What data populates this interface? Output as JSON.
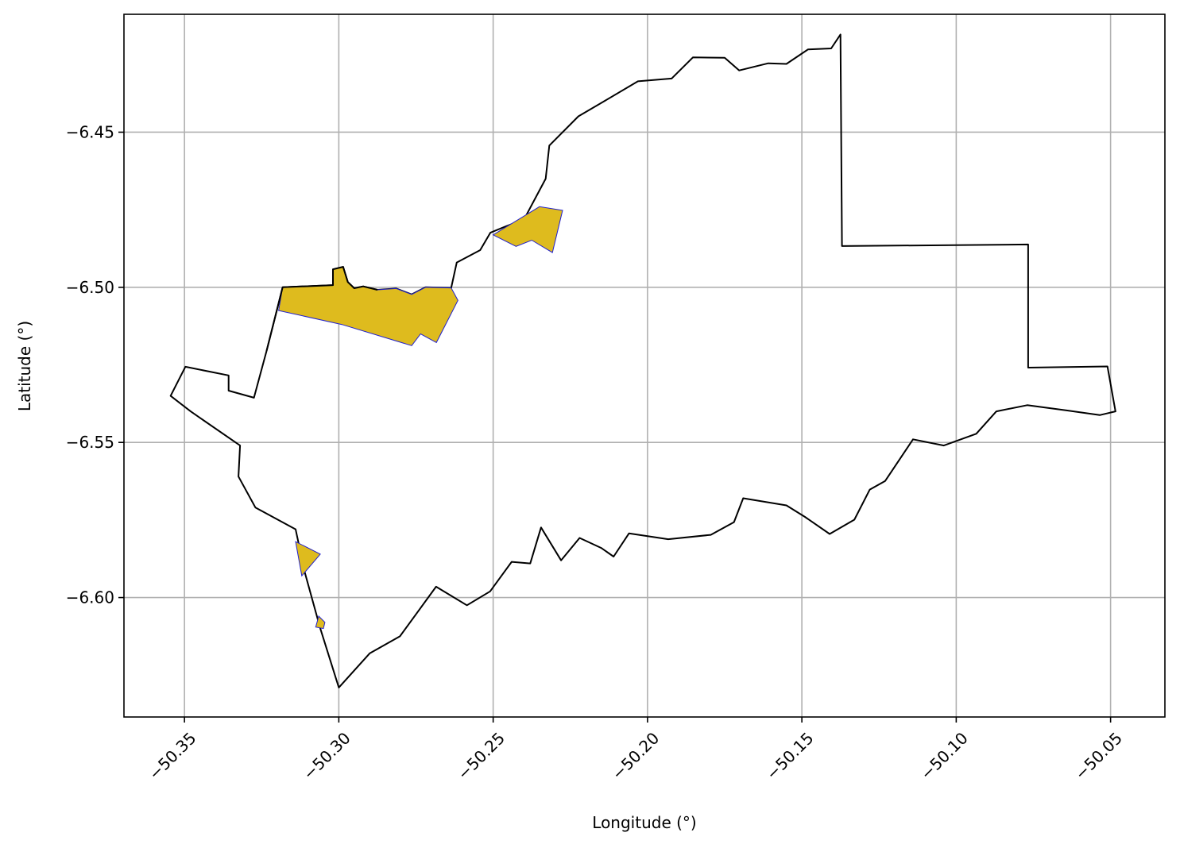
{
  "chart_data": {
    "type": "map",
    "xlabel": "Longitude (°)",
    "ylabel": "Latitude (°)",
    "xlim": [
      -50.3696,
      -50.0324
    ],
    "ylim": [
      -6.6385,
      -6.412
    ],
    "grid": true,
    "x_ticks": [
      -50.35,
      -50.3,
      -50.25,
      -50.2,
      -50.15,
      -50.1,
      -50.05
    ],
    "x_tick_labels": [
      "−50.35",
      "−50.30",
      "−50.25",
      "−50.20",
      "−50.15",
      "−50.10",
      "−50.05"
    ],
    "y_ticks": [
      -6.45,
      -6.5,
      -6.55,
      -6.6
    ],
    "y_tick_labels": [
      "−6.45",
      "−6.50",
      "−6.55",
      "−6.60"
    ],
    "colors": {
      "boundary": "#000000",
      "highlight_fill": "#DEBB1E",
      "highlight_edge": "#2020d0",
      "grid": "#b0b0b0"
    },
    "boundary": [
      [
        -50.3497,
        -6.5256
      ],
      [
        -50.3357,
        -6.5284
      ],
      [
        -50.3357,
        -6.5333
      ],
      [
        -50.3275,
        -6.5356
      ],
      [
        -50.3234,
        -6.5205
      ],
      [
        -50.3182,
        -6.5
      ],
      [
        -50.3019,
        -6.4993
      ],
      [
        -50.3019,
        -6.4942
      ],
      [
        -50.2986,
        -6.4934
      ],
      [
        -50.2971,
        -6.4983
      ],
      [
        -50.295,
        -6.5003
      ],
      [
        -50.2921,
        -6.4997
      ],
      [
        -50.2875,
        -6.5008
      ],
      [
        -50.2814,
        -6.5004
      ],
      [
        -50.2764,
        -6.5023
      ],
      [
        -50.2719,
        -6.5
      ],
      [
        -50.2636,
        -6.5002
      ],
      [
        -50.2618,
        -6.492
      ],
      [
        -50.2542,
        -6.488
      ],
      [
        -50.2509,
        -6.4824
      ],
      [
        -50.2465,
        -6.4806
      ],
      [
        -50.24,
        -6.4781
      ],
      [
        -50.233,
        -6.465
      ],
      [
        -50.2318,
        -6.4543
      ],
      [
        -50.2224,
        -6.4449
      ],
      [
        -50.214,
        -6.44
      ],
      [
        -50.2031,
        -6.4336
      ],
      [
        -50.1922,
        -6.4327
      ],
      [
        -50.1853,
        -6.4259
      ],
      [
        -50.175,
        -6.426
      ],
      [
        -50.1703,
        -6.4301
      ],
      [
        -50.1609,
        -6.4278
      ],
      [
        -50.155,
        -6.428
      ],
      [
        -50.148,
        -6.4233
      ],
      [
        -50.1405,
        -6.423
      ],
      [
        -50.1375,
        -6.4185
      ],
      [
        -50.137,
        -6.4867
      ],
      [
        -50.0767,
        -6.4862
      ],
      [
        -50.0767,
        -6.5259
      ],
      [
        -50.051,
        -6.5255
      ],
      [
        -50.0484,
        -6.54
      ],
      [
        -50.0535,
        -6.5412
      ],
      [
        -50.064,
        -6.5397
      ],
      [
        -50.077,
        -6.538
      ],
      [
        -50.087,
        -6.54
      ],
      [
        -50.0935,
        -6.5472
      ],
      [
        -50.104,
        -6.551
      ],
      [
        -50.114,
        -6.549
      ],
      [
        -50.123,
        -6.5624
      ],
      [
        -50.128,
        -6.5652
      ],
      [
        -50.133,
        -6.5749
      ],
      [
        -50.141,
        -6.5795
      ],
      [
        -50.149,
        -6.574
      ],
      [
        -50.155,
        -6.5703
      ],
      [
        -50.169,
        -6.568
      ],
      [
        -50.172,
        -6.5757
      ],
      [
        -50.1795,
        -6.5798
      ],
      [
        -50.1933,
        -6.5812
      ],
      [
        -50.206,
        -6.5793
      ],
      [
        -50.211,
        -6.5868
      ],
      [
        -50.215,
        -6.584
      ],
      [
        -50.222,
        -6.5808
      ],
      [
        -50.228,
        -6.588
      ],
      [
        -50.2345,
        -6.5774
      ],
      [
        -50.238,
        -6.589
      ],
      [
        -50.244,
        -6.5885
      ],
      [
        -50.251,
        -6.598
      ],
      [
        -50.2585,
        -6.6025
      ],
      [
        -50.2685,
        -6.5965
      ],
      [
        -50.2802,
        -6.6125
      ],
      [
        -50.29,
        -6.618
      ],
      [
        -50.3,
        -6.629
      ],
      [
        -50.306,
        -6.61
      ],
      [
        -50.311,
        -6.592
      ],
      [
        -50.314,
        -6.578
      ],
      [
        -50.327,
        -6.571
      ],
      [
        -50.3325,
        -6.561
      ],
      [
        -50.332,
        -6.551
      ],
      [
        -50.348,
        -6.54
      ],
      [
        -50.3545,
        -6.535
      ],
      [
        -50.3497,
        -6.5256
      ]
    ],
    "highlights": [
      [
        [
          -50.3182,
          -6.5
        ],
        [
          -50.3019,
          -6.4993
        ],
        [
          -50.3019,
          -6.4942
        ],
        [
          -50.2986,
          -6.4934
        ],
        [
          -50.2971,
          -6.4983
        ],
        [
          -50.295,
          -6.5003
        ],
        [
          -50.2921,
          -6.4997
        ],
        [
          -50.2875,
          -6.5008
        ],
        [
          -50.2814,
          -6.5004
        ],
        [
          -50.2764,
          -6.5023
        ],
        [
          -50.2719,
          -6.5
        ],
        [
          -50.2636,
          -6.5002
        ],
        [
          -50.2614,
          -6.5042
        ],
        [
          -50.2684,
          -6.5178
        ],
        [
          -50.2735,
          -6.515
        ],
        [
          -50.2764,
          -6.5188
        ],
        [
          -50.299,
          -6.512
        ],
        [
          -50.3195,
          -6.5075
        ]
      ],
      [
        [
          -50.25,
          -6.4831
        ],
        [
          -50.235,
          -6.474
        ],
        [
          -50.2275,
          -6.4752
        ],
        [
          -50.2308,
          -6.4888
        ],
        [
          -50.2375,
          -6.4848
        ],
        [
          -50.2426,
          -6.4868
        ]
      ],
      [
        [
          -50.314,
          -6.582
        ],
        [
          -50.306,
          -6.586
        ],
        [
          -50.312,
          -6.593
        ],
        [
          -50.314,
          -6.582
        ]
      ],
      [
        [
          -50.3065,
          -6.606
        ],
        [
          -50.3045,
          -6.608
        ],
        [
          -50.305,
          -6.61
        ],
        [
          -50.3075,
          -6.6095
        ]
      ]
    ]
  }
}
